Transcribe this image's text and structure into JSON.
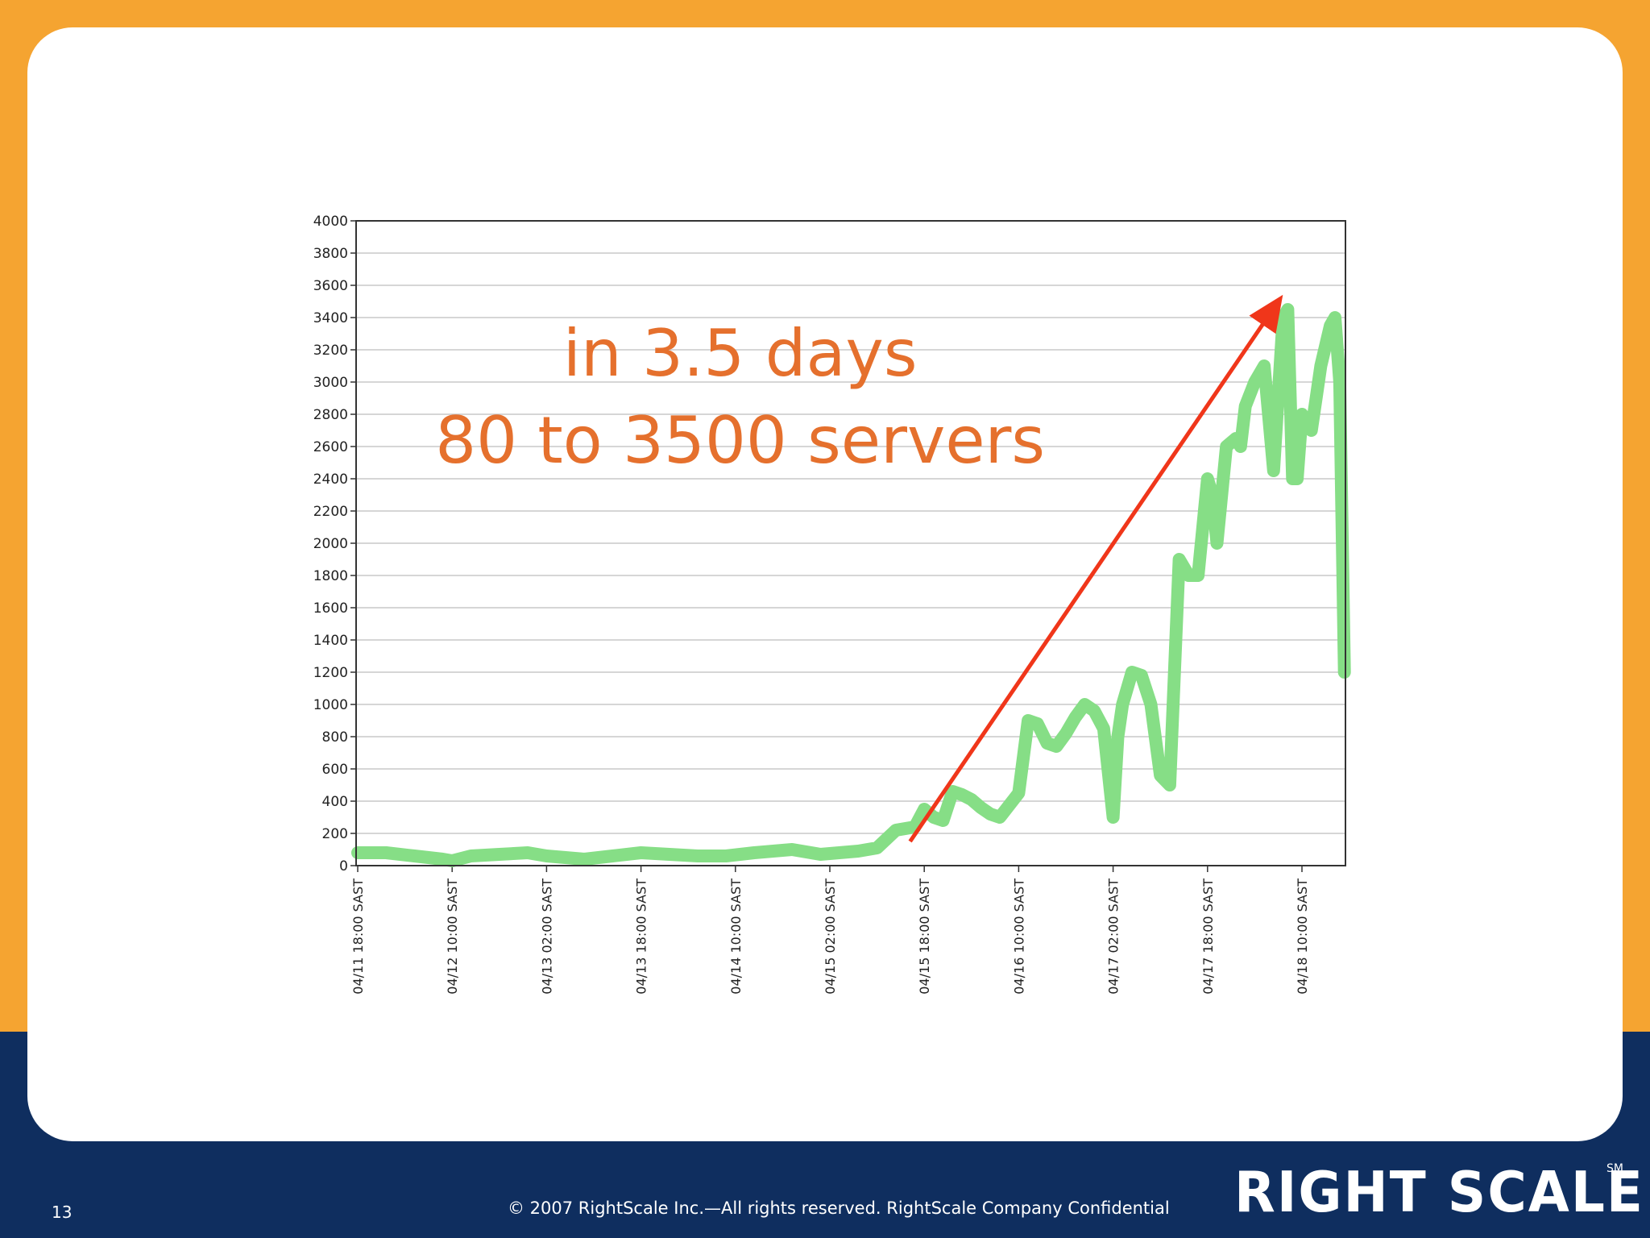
{
  "chart_data": {
    "type": "line",
    "title": "",
    "xlabel": "",
    "ylabel": "",
    "ylim": [
      0,
      4000
    ],
    "yticks": [
      0,
      200,
      400,
      600,
      800,
      1000,
      1200,
      1400,
      1600,
      1800,
      2000,
      2200,
      2400,
      2600,
      2800,
      3000,
      3200,
      3400,
      3600,
      3800,
      4000
    ],
    "xlim": [
      0,
      10.5
    ],
    "xticks": [
      {
        "pos": 0,
        "label": "04/11 18:00 SAST"
      },
      {
        "pos": 1,
        "label": "04/12 10:00 SAST"
      },
      {
        "pos": 2,
        "label": "04/13 02:00 SAST"
      },
      {
        "pos": 3,
        "label": "04/13 18:00 SAST"
      },
      {
        "pos": 4,
        "label": "04/14 10:00 SAST"
      },
      {
        "pos": 5,
        "label": "04/15 02:00 SAST"
      },
      {
        "pos": 6,
        "label": "04/15 18:00 SAST"
      },
      {
        "pos": 7,
        "label": "04/16 10:00 SAST"
      },
      {
        "pos": 8,
        "label": "04/17 02:00 SAST"
      },
      {
        "pos": 9,
        "label": "04/17 18:00 SAST"
      },
      {
        "pos": 10,
        "label": "04/18 10:00 SAST"
      }
    ],
    "grid": true,
    "series": [
      {
        "color": "#86de86",
        "x": [
          0,
          0.3,
          0.6,
          0.9,
          1.0,
          1.2,
          1.5,
          1.8,
          2.0,
          2.2,
          2.4,
          2.7,
          3.0,
          3.3,
          3.6,
          3.9,
          4.2,
          4.4,
          4.6,
          4.9,
          5.1,
          5.3,
          5.5,
          5.7,
          5.9,
          6.0,
          6.1,
          6.2,
          6.3,
          6.4,
          6.5,
          6.6,
          6.7,
          6.8,
          7.0,
          7.1,
          7.2,
          7.3,
          7.4,
          7.5,
          7.6,
          7.7,
          7.8,
          7.9,
          8.0,
          8.05,
          8.1,
          8.2,
          8.3,
          8.4,
          8.5,
          8.6,
          8.7,
          8.8,
          8.9,
          9.0,
          9.05,
          9.1,
          9.2,
          9.3,
          9.35,
          9.4,
          9.5,
          9.6,
          9.7,
          9.8,
          9.85,
          9.9,
          9.95,
          10.0,
          10.05,
          10.1,
          10.15,
          10.2,
          10.3,
          10.35,
          10.4,
          10.45
        ],
        "y": [
          80,
          80,
          60,
          40,
          30,
          60,
          70,
          80,
          60,
          50,
          40,
          60,
          80,
          70,
          60,
          60,
          80,
          90,
          100,
          70,
          80,
          90,
          110,
          220,
          240,
          350,
          300,
          280,
          460,
          440,
          410,
          360,
          320,
          300,
          450,
          900,
          880,
          760,
          740,
          820,
          920,
          1000,
          960,
          850,
          300,
          800,
          1000,
          1200,
          1180,
          1000,
          560,
          500,
          1900,
          1800,
          1800,
          2400,
          2300,
          2000,
          2600,
          2650,
          2600,
          2850,
          3000,
          3100,
          2450,
          3400,
          3450,
          2400,
          2400,
          2800,
          2750,
          2700,
          2900,
          3100,
          3350,
          3400,
          3000,
          1200
        ]
      }
    ],
    "annotations": [
      {
        "text": "in 3.5 days",
        "x": 4.05,
        "y": 3040
      },
      {
        "text": "80 to 3500 servers",
        "x": 4.05,
        "y": 2500
      }
    ],
    "arrow": {
      "color": "#f0361a",
      "from": {
        "x": 5.85,
        "y": 150
      },
      "to": {
        "x": 9.75,
        "y": 3500
      }
    },
    "line_color": "#86de86"
  },
  "footer": {
    "slide_number": "13",
    "copyright": "© 2007 RightScale Inc.—All rights reserved. RightScale Company Confidential",
    "logo_text": "RIGHT SCALE",
    "logo_mark": "SM"
  },
  "colors": {
    "frame": "#f5a431",
    "footer_band": "#0f2e5f",
    "annotation": "#e5702d",
    "arrow": "#f0361a"
  }
}
